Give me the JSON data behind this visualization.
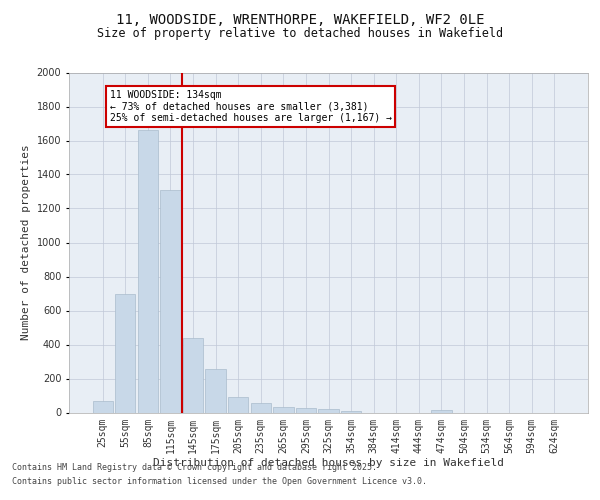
{
  "title_line1": "11, WOODSIDE, WRENTHORPE, WAKEFIELD, WF2 0LE",
  "title_line2": "Size of property relative to detached houses in Wakefield",
  "xlabel": "Distribution of detached houses by size in Wakefield",
  "ylabel": "Number of detached properties",
  "categories": [
    "25sqm",
    "55sqm",
    "85sqm",
    "115sqm",
    "145sqm",
    "175sqm",
    "205sqm",
    "235sqm",
    "265sqm",
    "295sqm",
    "325sqm",
    "354sqm",
    "384sqm",
    "414sqm",
    "444sqm",
    "474sqm",
    "504sqm",
    "534sqm",
    "564sqm",
    "594sqm",
    "624sqm"
  ],
  "values": [
    65,
    700,
    1660,
    1310,
    440,
    255,
    90,
    55,
    35,
    25,
    20,
    10,
    0,
    0,
    0,
    15,
    0,
    0,
    0,
    0,
    0
  ],
  "bar_color": "#c8d8e8",
  "bar_edge_color": "#aabccc",
  "annotation_title": "11 WOODSIDE: 134sqm",
  "annotation_line2": "← 73% of detached houses are smaller (3,381)",
  "annotation_line3": "25% of semi-detached houses are larger (1,167) →",
  "annotation_box_color": "#ffffff",
  "annotation_box_edge": "#cc0000",
  "vline_color": "#cc0000",
  "ylim": [
    0,
    2000
  ],
  "yticks": [
    0,
    200,
    400,
    600,
    800,
    1000,
    1200,
    1400,
    1600,
    1800,
    2000
  ],
  "background_color": "#e8eef5",
  "footer_line1": "Contains HM Land Registry data © Crown copyright and database right 2025.",
  "footer_line2": "Contains public sector information licensed under the Open Government Licence v3.0.",
  "title_fontsize": 10,
  "title2_fontsize": 8.5,
  "axis_label_fontsize": 8,
  "tick_fontsize": 7,
  "footer_fontsize": 6,
  "annotation_fontsize": 7
}
